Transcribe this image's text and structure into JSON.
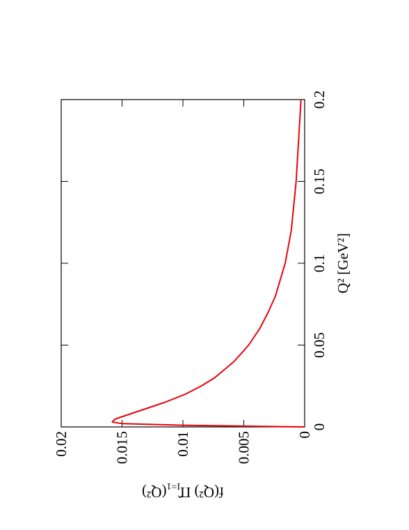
{
  "chart_data": {
    "type": "line",
    "x_label": "Q² [GeV²]",
    "y_label": {
      "main": "f(Q²) Π̂",
      "subscript": "I=1",
      "tail": "(Q²)"
    },
    "x": [
      0,
      0.001,
      0.002,
      0.003,
      0.004,
      0.005,
      0.0075,
      0.01,
      0.015,
      0.02,
      0.025,
      0.03,
      0.04,
      0.05,
      0.06,
      0.07,
      0.08,
      0.1,
      0.12,
      0.15,
      0.2
    ],
    "series": [
      {
        "color": "#e8000b",
        "values": [
          0,
          0.01,
          0.015,
          0.0158,
          0.0157,
          0.0155,
          0.0145,
          0.0135,
          0.0115,
          0.0098,
          0.0085,
          0.0074,
          0.0058,
          0.0046,
          0.0037,
          0.003,
          0.0024,
          0.0016,
          0.0011,
          0.0007,
          0.0003
        ]
      }
    ],
    "xlim": [
      0,
      0.2
    ],
    "xticks": [
      0,
      0.05,
      0.1,
      0.15,
      0.2
    ],
    "ylim": [
      0,
      0.02
    ],
    "yticks": [
      0,
      0.005,
      0.01,
      0.015,
      0.02
    ]
  }
}
